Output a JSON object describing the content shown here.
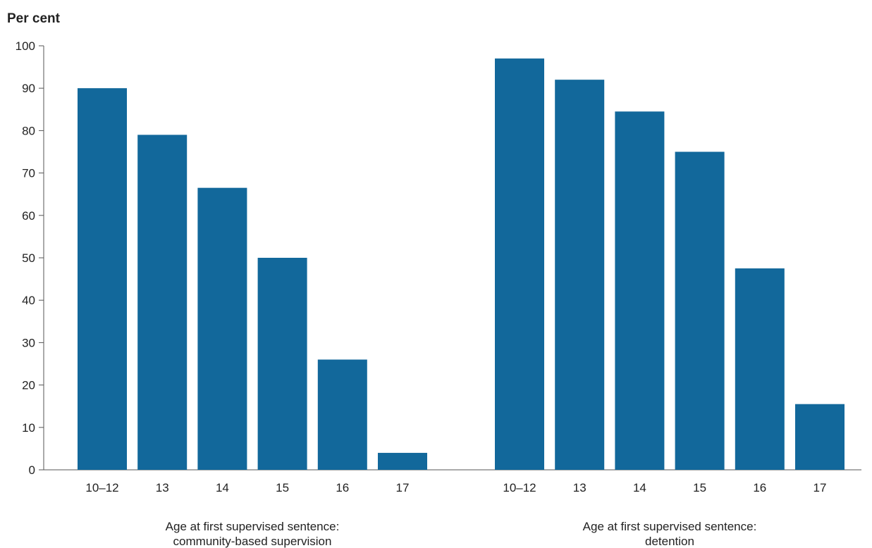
{
  "chart_data": {
    "type": "bar",
    "title": "",
    "ylabel": "Per cent",
    "ylim": [
      0,
      100
    ],
    "yticks": [
      0,
      10,
      20,
      30,
      40,
      50,
      60,
      70,
      80,
      90,
      100
    ],
    "grid": false,
    "bar_color": "#12689b",
    "groups": [
      {
        "label_lines": [
          "Age at first supervised sentence:",
          "community-based supervision"
        ],
        "categories": [
          "10–12",
          "13",
          "14",
          "15",
          "16",
          "17"
        ],
        "values": [
          90,
          79,
          66.5,
          50,
          26,
          4
        ]
      },
      {
        "label_lines": [
          "Age at first supervised sentence:",
          "detention"
        ],
        "categories": [
          "10–12",
          "13",
          "14",
          "15",
          "16",
          "17"
        ],
        "values": [
          97,
          92,
          84.5,
          75,
          47.5,
          15.5
        ]
      }
    ]
  }
}
